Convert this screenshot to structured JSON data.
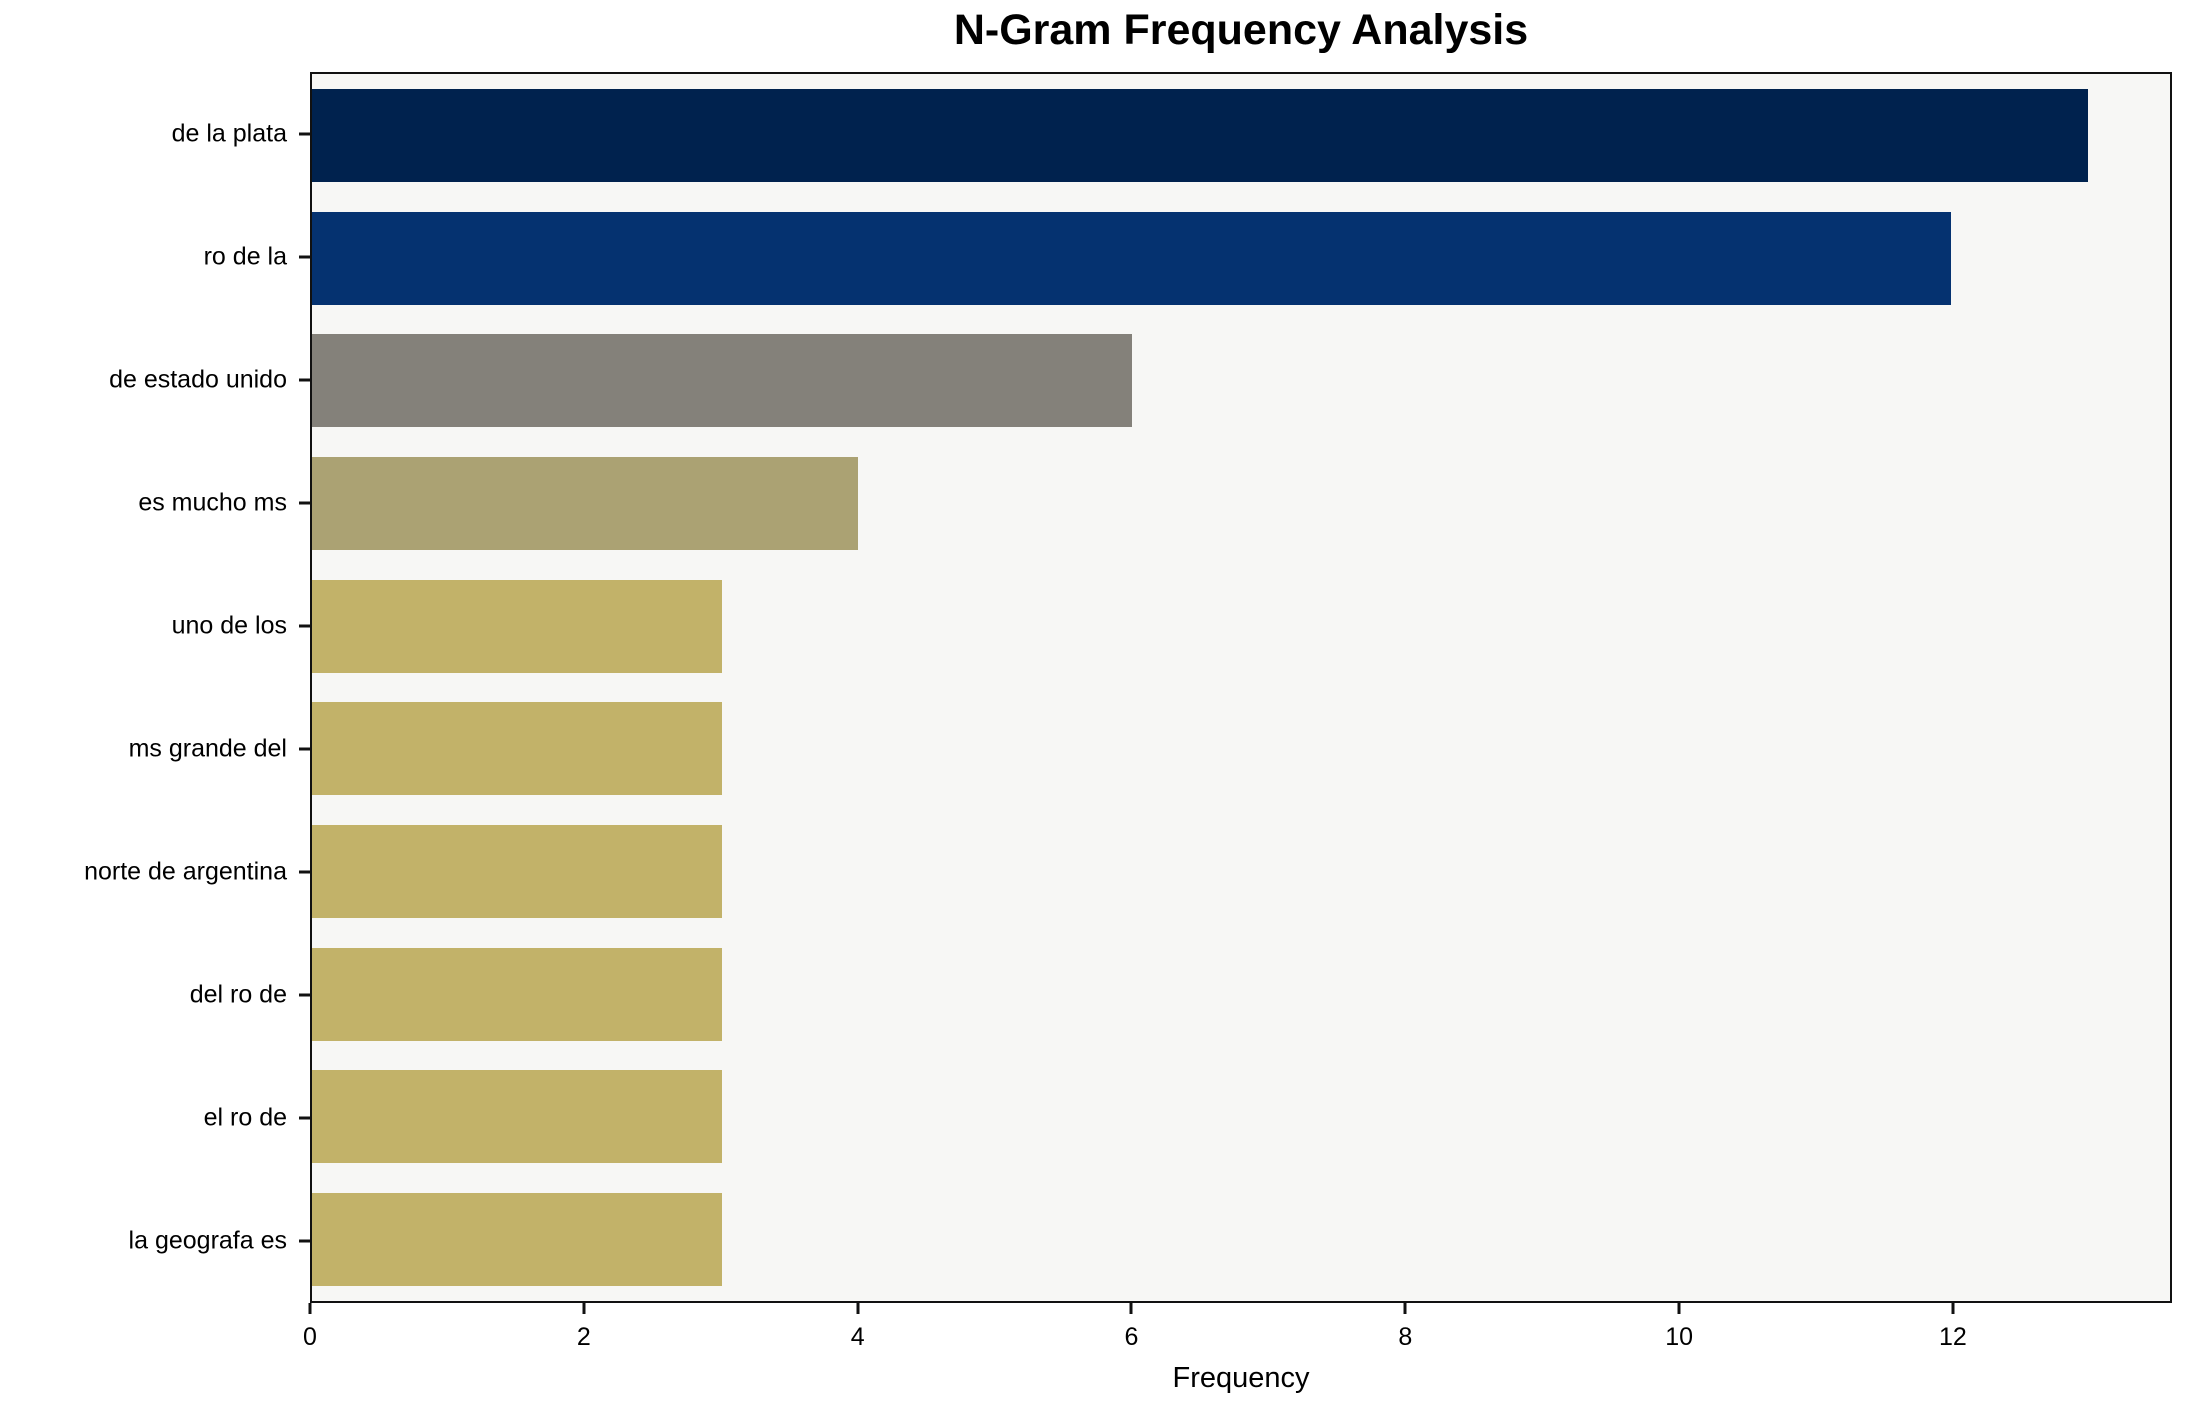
{
  "figure": {
    "background": "#ffffff"
  },
  "chart_data": {
    "type": "bar",
    "orientation": "horizontal",
    "title": "N-Gram Frequency Analysis",
    "xlabel": "Frequency",
    "ylabel": "",
    "categories": [
      "de la plata",
      "ro de la",
      "de estado unido",
      "es mucho ms",
      "uno de los",
      "ms grande del",
      "norte de argentina",
      "del ro de",
      "el ro de",
      "la geografa es"
    ],
    "values": [
      13,
      12,
      6,
      4,
      3,
      3,
      3,
      3,
      3,
      3
    ],
    "bar_colors": [
      "#00224e",
      "#053270",
      "#84817a",
      "#aba273",
      "#c2b269",
      "#c2b269",
      "#c2b269",
      "#c2b269",
      "#c2b269",
      "#c2b269"
    ],
    "xlim": [
      0,
      13.6
    ],
    "xticks": [
      0,
      2,
      4,
      6,
      8,
      10,
      12
    ],
    "grid": false,
    "legend": null,
    "plot_background": "#f7f7f5",
    "frame_color": "#111111"
  }
}
